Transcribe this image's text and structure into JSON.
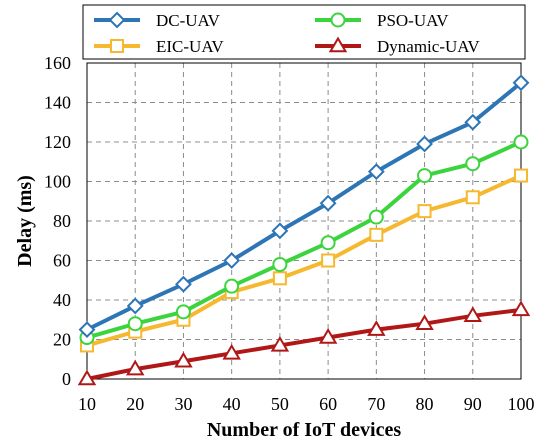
{
  "chart_data": {
    "type": "line",
    "xlabel": "Number of IoT devices",
    "ylabel": "Delay (ms)",
    "x": [
      10,
      20,
      30,
      40,
      50,
      60,
      70,
      80,
      90,
      100
    ],
    "xlim": [
      10,
      100
    ],
    "ylim": [
      0,
      160
    ],
    "yticks": [
      0,
      20,
      40,
      60,
      80,
      100,
      120,
      140,
      160
    ],
    "grid": true,
    "legend_position": "top",
    "series": [
      {
        "name": "DC-UAV",
        "color": "#2E75B6",
        "marker": "diamond",
        "values": [
          25,
          37,
          48,
          60,
          75,
          89,
          105,
          119,
          130,
          150
        ]
      },
      {
        "name": "PSO-UAV",
        "color": "#3CD43C",
        "marker": "circle",
        "values": [
          21,
          28,
          34,
          47,
          58,
          69,
          82,
          103,
          109,
          120
        ]
      },
      {
        "name": "EIC-UAV",
        "color": "#F5B82E",
        "marker": "square",
        "values": [
          17,
          24,
          30,
          44,
          51,
          60,
          73,
          85,
          92,
          103
        ]
      },
      {
        "name": "Dynamic-UAV",
        "color": "#B01818",
        "marker": "triangle",
        "values": [
          0,
          5,
          9,
          13,
          17,
          21,
          25,
          28,
          32,
          35
        ]
      }
    ]
  }
}
